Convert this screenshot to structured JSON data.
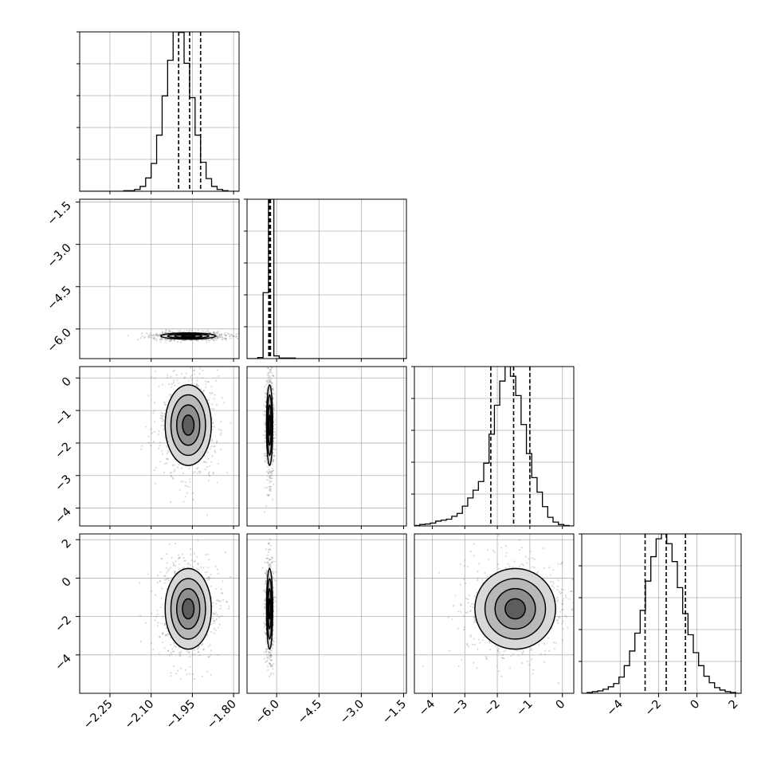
{
  "chart_data": {
    "type": "corner",
    "title": "",
    "parameter_labels": [
      "",
      "",
      "",
      ""
    ],
    "parameters": [
      {
        "index": 0,
        "range": [
          -2.36,
          -1.78
        ],
        "ticks": [
          -2.25,
          -2.1,
          -1.95,
          -1.8
        ],
        "tick_labels": [
          "−2.25",
          "−2.10",
          "−1.95",
          "−1.80"
        ]
      },
      {
        "index": 1,
        "range": [
          -7.05,
          -1.4
        ],
        "ticks": [
          -6.0,
          -4.5,
          -3.0,
          -1.5
        ],
        "tick_labels": [
          "−6.0",
          "−4.5",
          "−3.0",
          "−1.5"
        ]
      },
      {
        "index": 2,
        "range": [
          -4.55,
          0.35
        ],
        "ticks": [
          -4,
          -3,
          -2,
          -1,
          0
        ],
        "tick_labels": [
          "−4",
          "−3",
          "−2",
          "−1",
          "0"
        ]
      },
      {
        "index": 3,
        "range": [
          -6.0,
          2.3
        ],
        "ticks": [
          -4,
          -2,
          0,
          2
        ],
        "tick_labels": [
          "−4",
          "−2",
          "0",
          "2"
        ]
      }
    ],
    "marginals": [
      {
        "param": 0,
        "bin_edges": [
          -2.36,
          -2.34,
          -2.32,
          -2.3,
          -2.28,
          -2.26,
          -2.24,
          -2.22,
          -2.2,
          -2.18,
          -2.16,
          -2.14,
          -2.12,
          -2.1,
          -2.08,
          -2.06,
          -2.04,
          -2.02,
          -2.0,
          -1.98,
          -1.96,
          -1.94,
          -1.92,
          -1.9,
          -1.88,
          -1.86,
          -1.84,
          -1.82,
          -1.8,
          -1.78
        ],
        "counts": [
          0,
          0,
          0,
          0,
          0,
          0,
          0,
          0,
          1,
          1,
          3,
          8,
          22,
          46,
          93,
          158,
          217,
          264,
          263,
          212,
          155,
          93,
          48,
          21,
          8,
          3,
          1,
          0,
          0
        ],
        "quantiles": [
          -2.0,
          -1.96,
          -1.92
        ]
      },
      {
        "param": 1,
        "bin_edges": [
          -7.05,
          -6.86,
          -6.67,
          -6.48,
          -6.29,
          -6.1,
          -5.91,
          -5.72,
          -5.53,
          -5.34,
          -5.15,
          -4.96,
          -4.77,
          -4.58,
          -4.39,
          -4.2,
          -4.01,
          -3.82,
          -3.63,
          -3.44,
          -3.25,
          -3.06,
          -2.87,
          -2.68,
          -2.49,
          -2.3,
          -2.11,
          -1.92,
          -1.73,
          -1.54,
          -1.35
        ],
        "counts": [
          0,
          0,
          2,
          120,
          290,
          5,
          1,
          1,
          1,
          0,
          0,
          0,
          0,
          0,
          0,
          0,
          0,
          0,
          0,
          0,
          0,
          0,
          0,
          0,
          0,
          0,
          0,
          0,
          0,
          0
        ],
        "quantiles": [
          -6.28,
          -6.25,
          -6.22
        ]
      },
      {
        "param": 2,
        "bin_edges": [
          -4.55,
          -4.386,
          -4.222,
          -4.058,
          -3.894,
          -3.73,
          -3.566,
          -3.402,
          -3.238,
          -3.074,
          -2.91,
          -2.746,
          -2.582,
          -2.418,
          -2.254,
          -2.09,
          -1.926,
          -1.762,
          -1.598,
          -1.434,
          -1.27,
          -1.106,
          -0.942,
          -0.778,
          -0.614,
          -0.45,
          -0.286,
          -0.122,
          0.042,
          0.206,
          0.37
        ],
        "counts": [
          1,
          3,
          4,
          6,
          10,
          12,
          14,
          20,
          26,
          41,
          58,
          74,
          92,
          130,
          190,
          250,
          300,
          330,
          310,
          270,
          210,
          150,
          100,
          70,
          40,
          18,
          8,
          3,
          1,
          0
        ],
        "quantiles": [
          -2.2,
          -1.5,
          -1.0
        ]
      },
      {
        "param": 3,
        "bin_edges": [
          -6.0,
          -5.723,
          -5.447,
          -5.17,
          -4.893,
          -4.617,
          -4.34,
          -4.063,
          -3.787,
          -3.51,
          -3.233,
          -2.957,
          -2.68,
          -2.403,
          -2.127,
          -1.85,
          -1.573,
          -1.297,
          -1.02,
          -0.743,
          -0.467,
          -0.19,
          0.087,
          0.363,
          0.64,
          0.917,
          1.193,
          1.47,
          1.747,
          2.023,
          2.3
        ],
        "counts": [
          0,
          1,
          2,
          3,
          5,
          8,
          12,
          20,
          34,
          52,
          74,
          102,
          138,
          168,
          190,
          196,
          184,
          162,
          130,
          98,
          72,
          50,
          34,
          21,
          13,
          7,
          4,
          2,
          1,
          0
        ],
        "quantiles": [
          -2.7,
          -1.6,
          -0.6
        ]
      }
    ],
    "joint_2d": [
      {
        "x_param": 0,
        "y_param": 1,
        "center": [
          -1.965,
          -6.25
        ],
        "sigma": [
          0.05,
          0.055
        ],
        "rho": 0.0
      },
      {
        "x_param": 0,
        "y_param": 2,
        "center": [
          -1.965,
          -1.45
        ],
        "sigma": [
          0.042,
          0.62
        ],
        "rho": 0.0
      },
      {
        "x_param": 0,
        "y_param": 3,
        "center": [
          -1.965,
          -1.6
        ],
        "sigma": [
          0.042,
          1.05
        ],
        "rho": 0.0
      },
      {
        "x_param": 1,
        "y_param": 2,
        "center": [
          -6.25,
          -1.45
        ],
        "sigma": [
          0.055,
          0.62
        ],
        "rho": 0.0
      },
      {
        "x_param": 1,
        "y_param": 3,
        "center": [
          -6.25,
          -1.6
        ],
        "sigma": [
          0.055,
          1.05
        ],
        "rho": 0.0
      },
      {
        "x_param": 2,
        "y_param": 3,
        "center": [
          -1.45,
          -1.6
        ],
        "sigma": [
          0.62,
          1.05
        ],
        "rho": 0.0
      }
    ],
    "contour_levels_sigma": [
      0.5,
      1.0,
      1.5,
      2.0
    ],
    "grid": true,
    "legend": "none"
  }
}
